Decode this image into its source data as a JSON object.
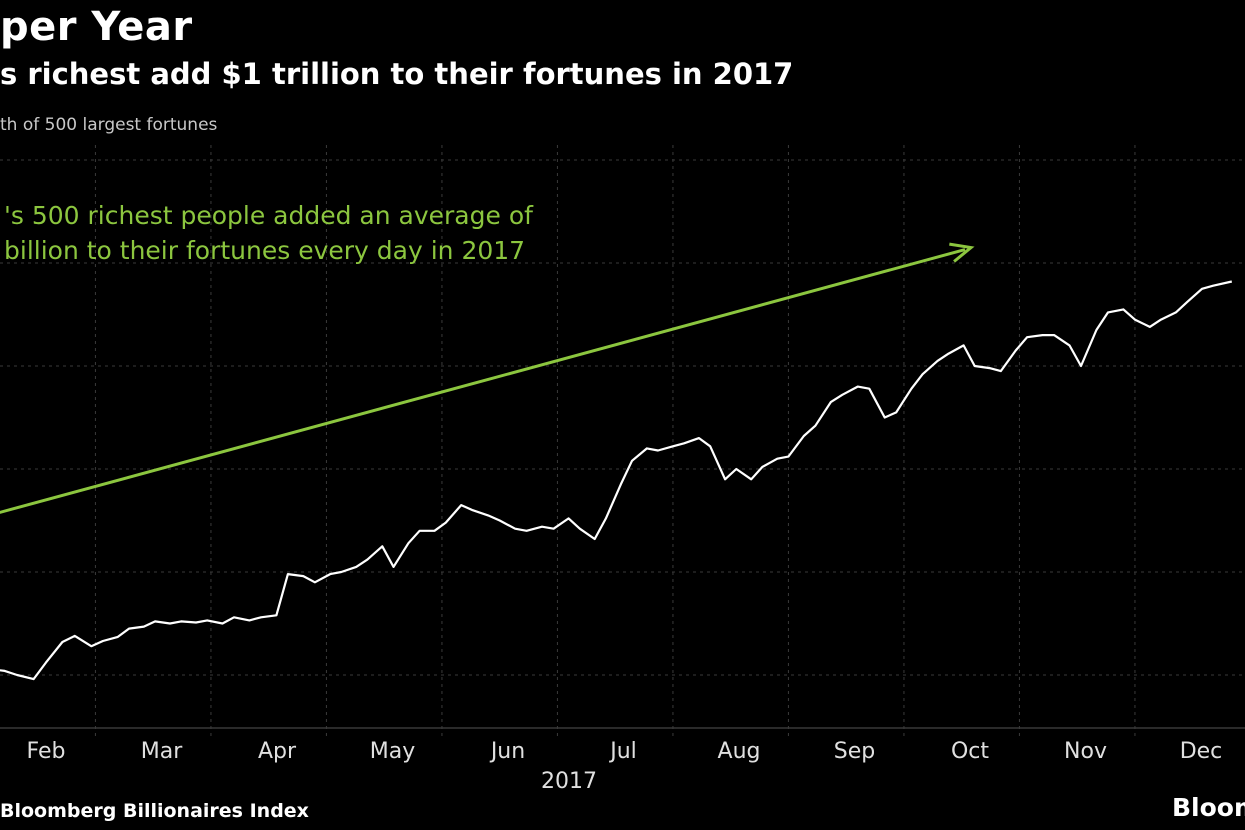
{
  "header": {
    "title": "per Year",
    "subtitle": "s richest add $1 trillion to their fortunes in 2017",
    "axis_note": "th of 500 largest fortunes"
  },
  "footer": {
    "source": "Bloomberg Billionaires Index",
    "brand": "Bloom"
  },
  "colors": {
    "background": "#000000",
    "line": "#ffffff",
    "annotation": "#8cc63f",
    "grid": "#3a3a3a"
  },
  "chart_data": {
    "type": "line",
    "title": "per Year",
    "subtitle": "s richest add $1 trillion to their fortunes in 2017",
    "xlabel": "2017",
    "ylabel": "th of 500 largest fortunes",
    "x_ticks": [
      "Feb",
      "Mar",
      "Apr",
      "May",
      "Jun",
      "Jul",
      "Aug",
      "Sep",
      "Oct",
      "Nov",
      "Dec"
    ],
    "x_range": [
      "2017-01-02",
      "2017-12-29"
    ],
    "ylim": [
      0,
      6
    ],
    "grid": true,
    "series": [
      {
        "values": [
          [
            "2017-01-02",
            0.62
          ],
          [
            "2017-01-05",
            0.68
          ],
          [
            "2017-01-09",
            0.8
          ],
          [
            "2017-01-13",
            0.92
          ],
          [
            "2017-01-17",
            0.96
          ],
          [
            "2017-01-20",
            1.05
          ],
          [
            "2017-01-24",
            1.08
          ],
          [
            "2017-01-27",
            1.02
          ],
          [
            "2017-01-31",
            1.12
          ],
          [
            "2017-02-03",
            1.06
          ],
          [
            "2017-02-07",
            1.04
          ],
          [
            "2017-02-10",
            1.0
          ],
          [
            "2017-02-14",
            0.96
          ],
          [
            "2017-02-17",
            1.12
          ],
          [
            "2017-02-21",
            1.32
          ],
          [
            "2017-02-24",
            1.38
          ],
          [
            "2017-02-28",
            1.28
          ],
          [
            "2017-03-03",
            1.33
          ],
          [
            "2017-03-07",
            1.37
          ],
          [
            "2017-03-10",
            1.45
          ],
          [
            "2017-03-14",
            1.47
          ],
          [
            "2017-03-17",
            1.52
          ],
          [
            "2017-03-21",
            1.5
          ],
          [
            "2017-03-24",
            1.52
          ],
          [
            "2017-03-28",
            1.51
          ],
          [
            "2017-03-31",
            1.53
          ],
          [
            "2017-04-04",
            1.5
          ],
          [
            "2017-04-07",
            1.56
          ],
          [
            "2017-04-11",
            1.53
          ],
          [
            "2017-04-14",
            1.56
          ],
          [
            "2017-04-18",
            1.58
          ],
          [
            "2017-04-21",
            1.98
          ],
          [
            "2017-04-25",
            1.96
          ],
          [
            "2017-04-28",
            1.9
          ],
          [
            "2017-05-02",
            1.98
          ],
          [
            "2017-05-05",
            2.0
          ],
          [
            "2017-05-09",
            2.05
          ],
          [
            "2017-05-12",
            2.12
          ],
          [
            "2017-05-16",
            2.25
          ],
          [
            "2017-05-19",
            2.05
          ],
          [
            "2017-05-23",
            2.28
          ],
          [
            "2017-05-26",
            2.4
          ],
          [
            "2017-05-30",
            2.4
          ],
          [
            "2017-06-02",
            2.48
          ],
          [
            "2017-06-06",
            2.65
          ],
          [
            "2017-06-09",
            2.6
          ],
          [
            "2017-06-13",
            2.55
          ],
          [
            "2017-06-16",
            2.5
          ],
          [
            "2017-06-20",
            2.42
          ],
          [
            "2017-06-23",
            2.4
          ],
          [
            "2017-06-27",
            2.44
          ],
          [
            "2017-06-30",
            2.42
          ],
          [
            "2017-07-04",
            2.52
          ],
          [
            "2017-07-07",
            2.42
          ],
          [
            "2017-07-11",
            2.32
          ],
          [
            "2017-07-14",
            2.52
          ],
          [
            "2017-07-18",
            2.85
          ],
          [
            "2017-07-21",
            3.08
          ],
          [
            "2017-07-25",
            3.2
          ],
          [
            "2017-07-28",
            3.18
          ],
          [
            "2017-08-01",
            3.22
          ],
          [
            "2017-08-04",
            3.25
          ],
          [
            "2017-08-08",
            3.3
          ],
          [
            "2017-08-11",
            3.22
          ],
          [
            "2017-08-15",
            2.9
          ],
          [
            "2017-08-18",
            3.0
          ],
          [
            "2017-08-22",
            2.9
          ],
          [
            "2017-08-25",
            3.02
          ],
          [
            "2017-08-29",
            3.1
          ],
          [
            "2017-09-01",
            3.12
          ],
          [
            "2017-09-05",
            3.32
          ],
          [
            "2017-09-08",
            3.42
          ],
          [
            "2017-09-12",
            3.65
          ],
          [
            "2017-09-15",
            3.72
          ],
          [
            "2017-09-19",
            3.8
          ],
          [
            "2017-09-22",
            3.78
          ],
          [
            "2017-09-26",
            3.5
          ],
          [
            "2017-09-29",
            3.55
          ],
          [
            "2017-10-03",
            3.78
          ],
          [
            "2017-10-06",
            3.92
          ],
          [
            "2017-10-10",
            4.05
          ],
          [
            "2017-10-13",
            4.12
          ],
          [
            "2017-10-17",
            4.2
          ],
          [
            "2017-10-20",
            4.0
          ],
          [
            "2017-10-24",
            3.98
          ],
          [
            "2017-10-27",
            3.95
          ],
          [
            "2017-10-31",
            4.15
          ],
          [
            "2017-11-03",
            4.28
          ],
          [
            "2017-11-07",
            4.3
          ],
          [
            "2017-11-10",
            4.3
          ],
          [
            "2017-11-14",
            4.2
          ],
          [
            "2017-11-17",
            4.0
          ],
          [
            "2017-11-21",
            4.35
          ],
          [
            "2017-11-24",
            4.52
          ],
          [
            "2017-11-28",
            4.55
          ],
          [
            "2017-12-01",
            4.45
          ],
          [
            "2017-12-05",
            4.38
          ],
          [
            "2017-12-08",
            4.45
          ],
          [
            "2017-12-12",
            4.52
          ],
          [
            "2017-12-15",
            4.62
          ],
          [
            "2017-12-19",
            4.75
          ],
          [
            "2017-12-22",
            4.78
          ],
          [
            "2017-12-27",
            4.82
          ]
        ]
      }
    ],
    "annotations": [
      {
        "text_lines": [
          "'s 500 richest people added an average of",
          "billion to their fortunes every day in 2017"
        ],
        "arrow": {
          "from": [
            "2017-01-04",
            2.25
          ],
          "to": [
            "2017-10-19",
            5.15
          ]
        }
      }
    ]
  }
}
